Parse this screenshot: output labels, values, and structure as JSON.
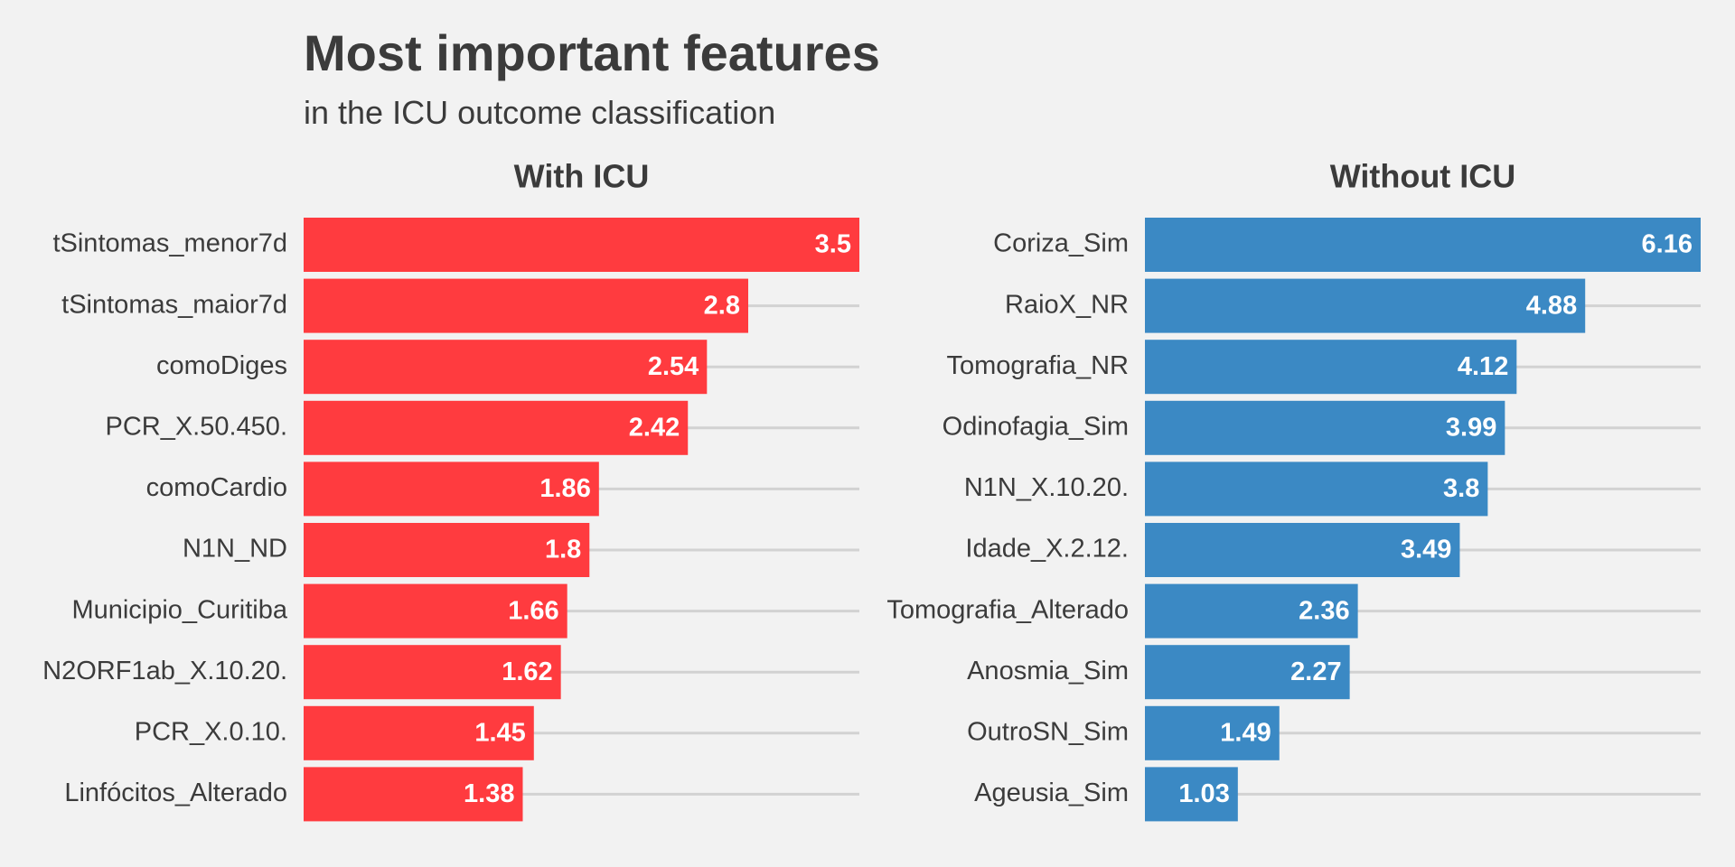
{
  "chart_data": {
    "type": "bar",
    "orientation": "horizontal",
    "title": "Most important features",
    "subtitle": "in the ICU outcome classification",
    "legend": "none",
    "grid": true,
    "panels": [
      {
        "title": "With ICU",
        "color": "#ff3b3f",
        "xlim": [
          0,
          3.5
        ],
        "categories": [
          "tSintomas_menor7d",
          "tSintomas_maior7d",
          "comoDiges",
          "PCR_X.50.450.",
          "comoCardio",
          "N1N_ND",
          "Municipio_Curitiba",
          "N2ORF1ab_X.10.20.",
          "PCR_X.0.10.",
          "Linfócitos_Alterado"
        ],
        "values": [
          3.5,
          2.8,
          2.54,
          2.42,
          1.86,
          1.8,
          1.66,
          1.62,
          1.45,
          1.38
        ],
        "value_labels": [
          "3.5",
          "2.8",
          "2.54",
          "2.42",
          "1.86",
          "1.8",
          "1.66",
          "1.62",
          "1.45",
          "1.38"
        ]
      },
      {
        "title": "Without ICU",
        "color": "#3b89c4",
        "xlim": [
          0,
          6.16
        ],
        "categories": [
          "Coriza_Sim",
          "RaioX_NR",
          "Tomografia_NR",
          "Odinofagia_Sim",
          "N1N_X.10.20.",
          "Idade_X.2.12.",
          "Tomografia_Alterado",
          "Anosmia_Sim",
          "OutroSN_Sim",
          "Ageusia_Sim"
        ],
        "values": [
          6.16,
          4.88,
          4.12,
          3.99,
          3.8,
          3.49,
          2.36,
          2.27,
          1.49,
          1.03
        ],
        "value_labels": [
          "6.16",
          "4.88",
          "4.12",
          "3.99",
          "3.8",
          "3.49",
          "2.36",
          "2.27",
          "1.49",
          "1.03"
        ]
      }
    ]
  }
}
